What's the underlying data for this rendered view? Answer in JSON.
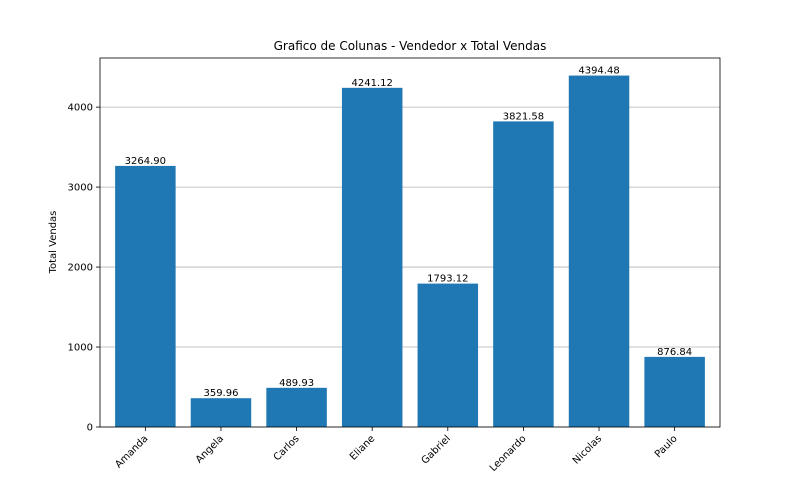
{
  "chart_data": {
    "type": "bar",
    "title": "Grafico de Colunas - Vendedor x Total Vendas",
    "xlabel": "",
    "ylabel": "Total Vendas",
    "categories": [
      "Amanda",
      "Angela",
      "Carlos",
      "Eliane",
      "Gabriel",
      "Leonardo",
      "Nicolas",
      "Paulo"
    ],
    "values": [
      3264.9,
      359.96,
      489.93,
      4241.12,
      1793.12,
      3821.58,
      4394.48,
      876.84
    ],
    "value_labels": [
      "3264.90",
      "359.96",
      "489.93",
      "4241.12",
      "1793.12",
      "3821.58",
      "4394.48",
      "876.84"
    ],
    "ylim": [
      0,
      4614.2
    ],
    "yticks": [
      0,
      1000,
      2000,
      3000,
      4000
    ],
    "grid": "y-major",
    "colors": {
      "bar": "#1f77b4",
      "grid": "#b0b0b0",
      "axis": "#000000"
    }
  }
}
